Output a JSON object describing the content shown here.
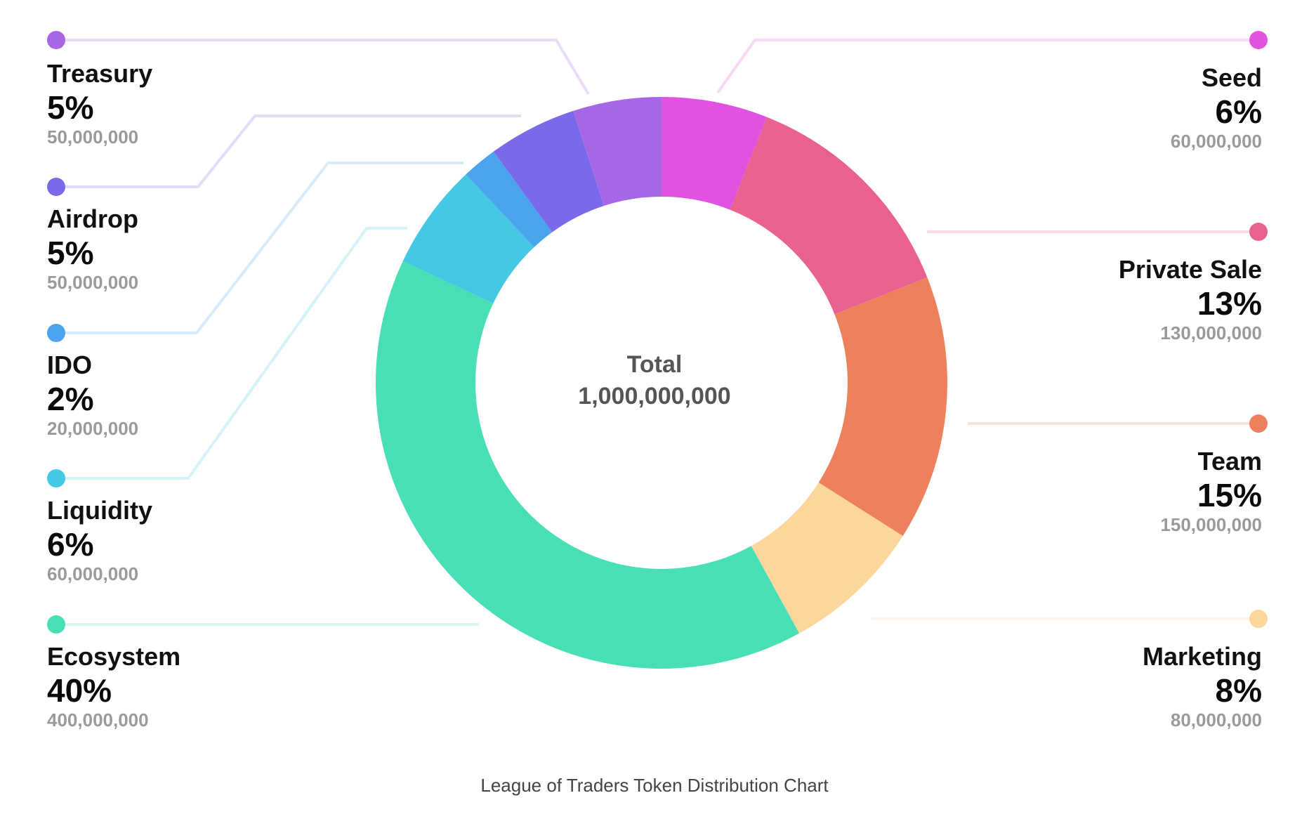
{
  "chart_data": {
    "type": "pie",
    "title": "League of Traders Token Distribution Chart",
    "center": {
      "label": "Total",
      "value": "1,000,000,000"
    },
    "slices": [
      {
        "name": "Seed",
        "percent": 6,
        "percent_label": "6%",
        "amount": "60,000,000",
        "color": "#E052DF"
      },
      {
        "name": "Private Sale",
        "percent": 13,
        "percent_label": "13%",
        "amount": "130,000,000",
        "color": "#E96191"
      },
      {
        "name": "Team",
        "percent": 15,
        "percent_label": "15%",
        "amount": "150,000,000",
        "color": "#EF805C"
      },
      {
        "name": "Marketing",
        "percent": 8,
        "percent_label": "8%",
        "amount": "80,000,000",
        "color": "#FDD69B"
      },
      {
        "name": "Ecosystem",
        "percent": 40,
        "percent_label": "40%",
        "amount": "400,000,000",
        "color": "#48DFB6"
      },
      {
        "name": "Liquidity",
        "percent": 6,
        "percent_label": "6%",
        "amount": "60,000,000",
        "color": "#44C8E4"
      },
      {
        "name": "IDO",
        "percent": 2,
        "percent_label": "2%",
        "amount": "20,000,000",
        "color": "#4BA3EE"
      },
      {
        "name": "Airdrop",
        "percent": 5,
        "percent_label": "5%",
        "amount": "50,000,000",
        "color": "#7A6AE9"
      },
      {
        "name": "Treasury",
        "percent": 5,
        "percent_label": "5%",
        "amount": "50,000,000",
        "color": "#A666E6"
      }
    ]
  }
}
